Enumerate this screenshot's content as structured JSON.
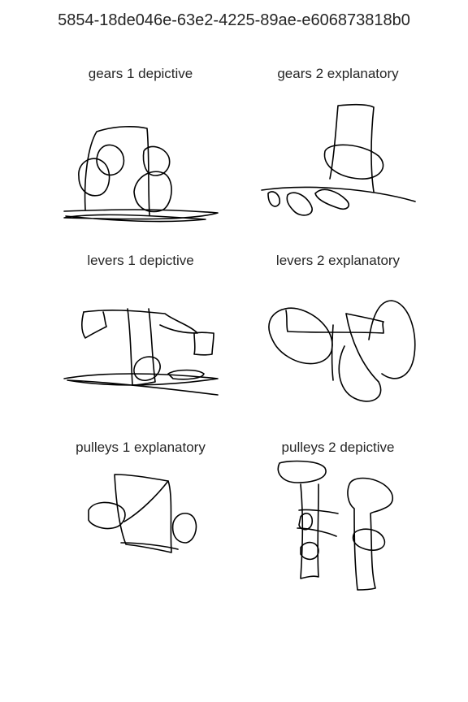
{
  "title": "5854-18de046e-63e2-4225-89ae-e606873818b0",
  "panels": [
    {
      "label": "gears 1 depictive"
    },
    {
      "label": "gears 2 explanatory"
    },
    {
      "label": "levers 1 depictive"
    },
    {
      "label": "levers 2 explanatory"
    },
    {
      "label": "pulleys 1 explanatory"
    },
    {
      "label": "pulleys 2 depictive"
    }
  ]
}
